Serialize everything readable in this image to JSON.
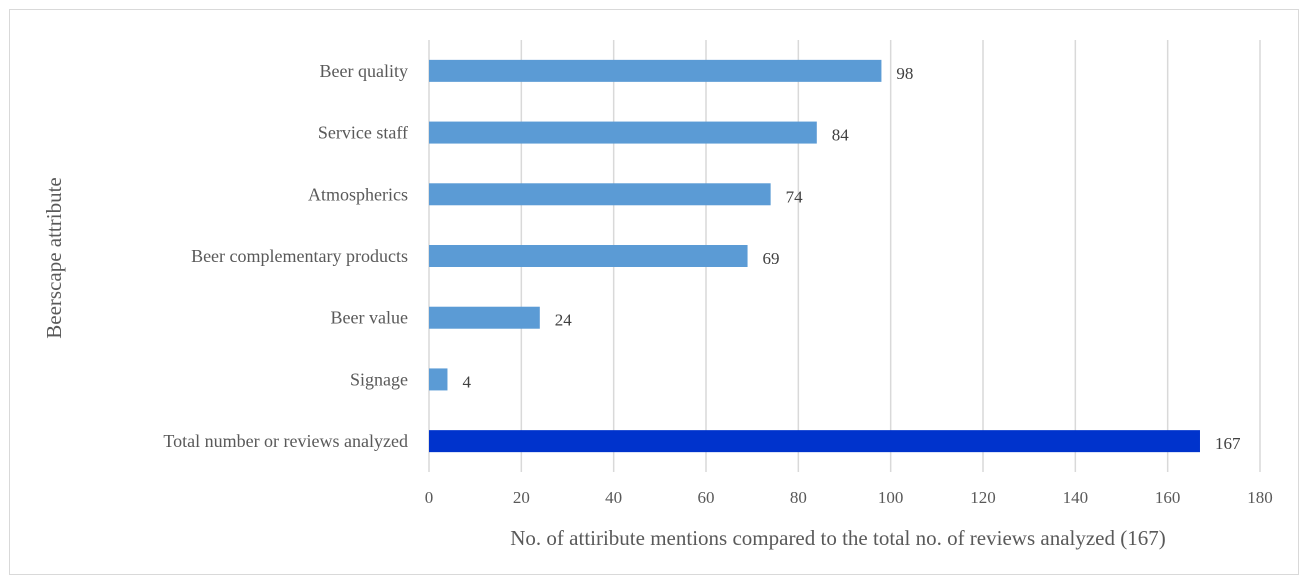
{
  "chart_data": {
    "type": "bar",
    "orientation": "horizontal",
    "categories": [
      "Beer quality",
      "Service staff",
      "Atmospherics",
      "Beer complementary products",
      "Beer value",
      "Signage",
      "Total number or reviews analyzed"
    ],
    "values": [
      98,
      84,
      74,
      69,
      24,
      4,
      167
    ],
    "colors": [
      "#5b9bd5",
      "#5b9bd5",
      "#5b9bd5",
      "#5b9bd5",
      "#5b9bd5",
      "#5b9bd5",
      "#0033cc"
    ],
    "xlabel": "No. of attiribute mentions compared to the total no. of reviews analyzed (167)",
    "ylabel": "Beerscape attribute",
    "xlim": [
      0,
      180
    ],
    "xticks": [
      0,
      20,
      40,
      60,
      80,
      100,
      120,
      140,
      160,
      180
    ],
    "grid": "vertical",
    "legend": "none",
    "data_labels": true
  }
}
